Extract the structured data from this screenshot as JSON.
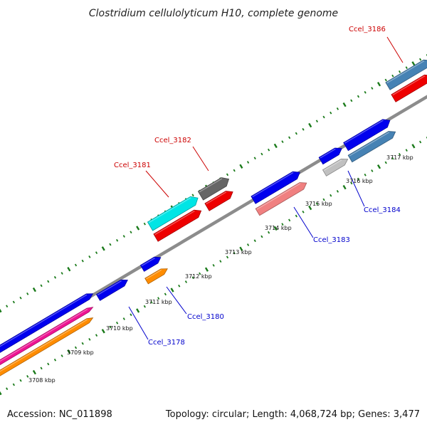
{
  "title": "Clostridium cellulolyticum H10, complete genome",
  "footer": {
    "accession": "Accession: NC_011898",
    "summary": "Topology: circular; Length: 4,068,724 bp; Genes: 3,477"
  },
  "colors": {
    "backbone": "#888888",
    "tick": "#1a7a1a",
    "forward_label": "#cc0000",
    "reverse_label": "#0000cc"
  },
  "kbp_marks": [
    {
      "label": "3708 kbp"
    },
    {
      "label": "3709 kbp"
    },
    {
      "label": "3710 kbp"
    },
    {
      "label": "3711 kbp"
    },
    {
      "label": "3712 kbp"
    },
    {
      "label": "3713 kbp"
    },
    {
      "label": "3714 kbp"
    },
    {
      "label": "3715 kbp"
    },
    {
      "label": "3716 kbp"
    },
    {
      "label": "3717 kbp"
    }
  ],
  "gene_labels": [
    {
      "text": "Ccel_3186",
      "strand": "forward"
    },
    {
      "text": "Ccel_3182",
      "strand": "forward"
    },
    {
      "text": "Ccel_3181",
      "strand": "forward"
    },
    {
      "text": "Ccel_3184",
      "strand": "reverse"
    },
    {
      "text": "Ccel_3183",
      "strand": "reverse"
    },
    {
      "text": "Ccel_3180",
      "strand": "reverse"
    },
    {
      "text": "Ccel_3178",
      "strand": "reverse"
    }
  ],
  "features": [
    {
      "color": "#0000ee"
    },
    {
      "color": "#ee1493"
    },
    {
      "color": "#ff8c00"
    },
    {
      "color": "#0000ee"
    },
    {
      "color": "#0000ee"
    },
    {
      "color": "#ff8c00"
    },
    {
      "color": "#00e5e5"
    },
    {
      "color": "#ee0000"
    },
    {
      "color": "#666666"
    },
    {
      "color": "#ee0000"
    },
    {
      "color": "#0000ee"
    },
    {
      "color": "#f08080"
    },
    {
      "color": "#0000ee"
    },
    {
      "color": "#c0c0c0"
    },
    {
      "color": "#0000ee"
    },
    {
      "color": "#4682b4"
    },
    {
      "color": "#4682b4"
    },
    {
      "color": "#ee0000"
    }
  ]
}
